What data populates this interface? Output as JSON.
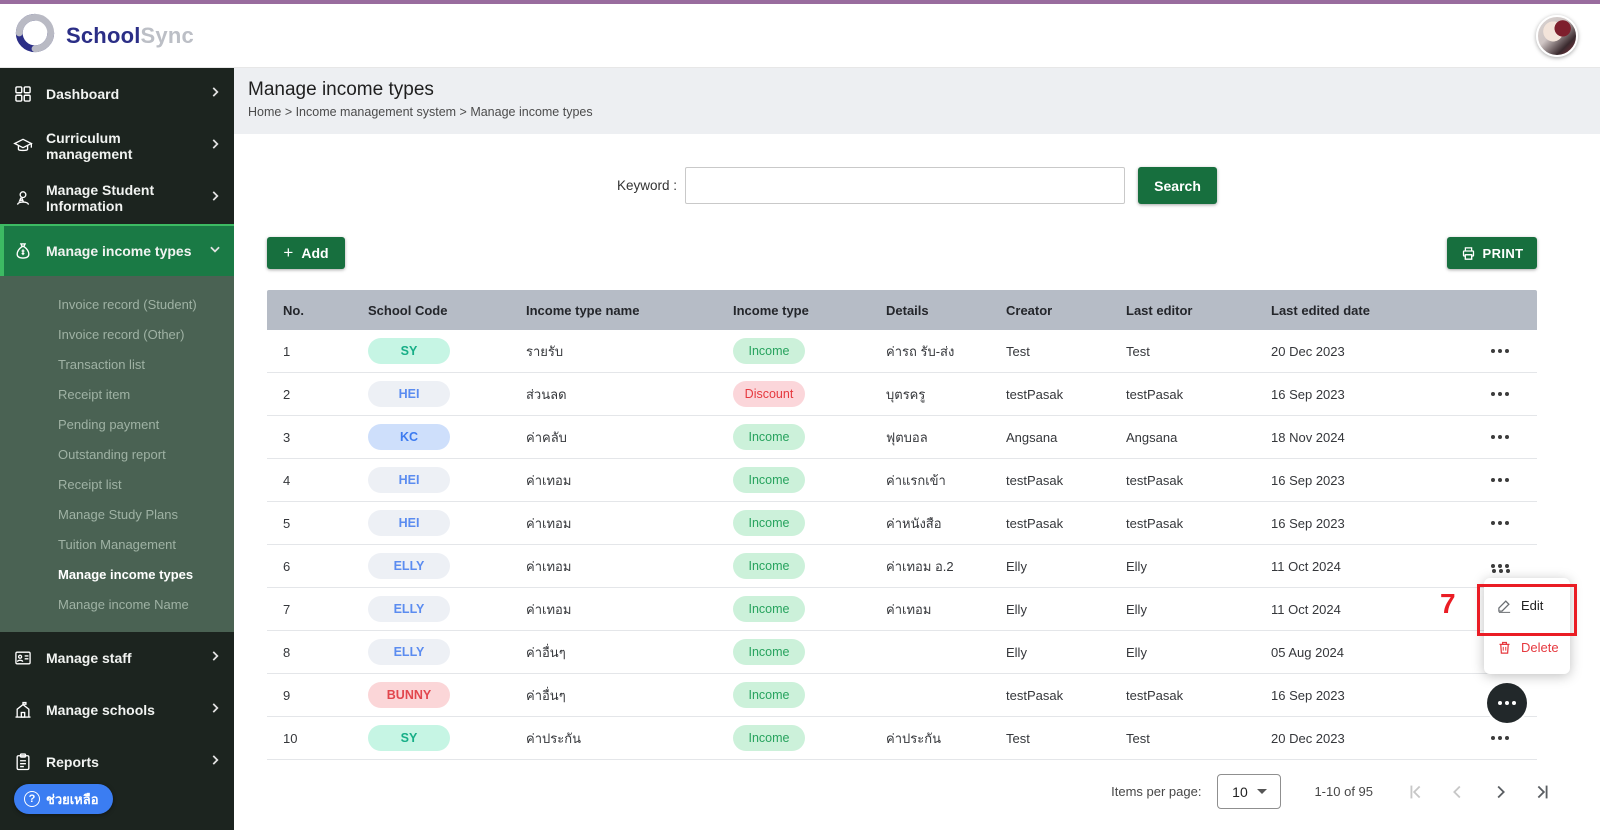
{
  "topbar": {
    "brand_primary": "School",
    "brand_secondary": "Sync"
  },
  "sidebar": {
    "items": [
      {
        "label": "Dashboard",
        "icon": "grid-icon",
        "active": false
      },
      {
        "label": "Curriculum management",
        "icon": "graduation-cap-icon",
        "active": false
      },
      {
        "label": "Manage Student Information",
        "icon": "student-icon",
        "active": false
      },
      {
        "label": "Manage income types",
        "icon": "money-bag-icon",
        "active": true
      },
      {
        "label": "Manage staff",
        "icon": "id-badge-icon",
        "active": false
      },
      {
        "label": "Manage schools",
        "icon": "school-building-icon",
        "active": false
      },
      {
        "label": "Reports",
        "icon": "clipboard-icon",
        "active": false
      }
    ],
    "submenu": [
      "Invoice record (Student)",
      "Invoice record (Other)",
      "Transaction list",
      "Receipt item",
      "Pending payment",
      "Outstanding report",
      "Receipt list",
      "Manage Study Plans",
      "Tuition Management",
      "Manage income types",
      "Manage income Name"
    ],
    "submenu_active": "Manage income types",
    "help_label": "ช่วยเหลือ"
  },
  "page_header": {
    "title": "Manage income types",
    "breadcrumb": "Home > Income management system > Manage income types"
  },
  "search": {
    "label": "Keyword :",
    "value": "",
    "button_label": "Search"
  },
  "toolbar": {
    "add_label": "Add",
    "print_label": "PRINT"
  },
  "table": {
    "columns": [
      "No.",
      "School Code",
      "Income type name",
      "Income type",
      "Details",
      "Creator",
      "Last editor",
      "Last edited date"
    ],
    "rows": [
      {
        "no": "1",
        "code": "SY",
        "code_style": "mint",
        "name": "รายรับ",
        "type": "Income",
        "details": "ค่ารถ รับ-ส่ง",
        "creator": "Test",
        "editor": "Test",
        "date": "20 Dec 2023",
        "action_visible": true
      },
      {
        "no": "2",
        "code": "HEI",
        "code_style": "grey",
        "name": "ส่วนลด",
        "type": "Discount",
        "details": "บุตรครู",
        "creator": "testPasak",
        "editor": "testPasak",
        "date": "16 Sep 2023",
        "action_visible": true
      },
      {
        "no": "3",
        "code": "KC",
        "code_style": "blue",
        "name": "ค่าคลับ",
        "type": "Income",
        "details": "ฟุตบอล",
        "creator": "Angsana",
        "editor": "Angsana",
        "date": "18 Nov 2024",
        "action_visible": true
      },
      {
        "no": "4",
        "code": "HEI",
        "code_style": "grey",
        "name": "ค่าเทอม",
        "type": "Income",
        "details": "ค่าแรกเข้า",
        "creator": "testPasak",
        "editor": "testPasak",
        "date": "16 Sep 2023",
        "action_visible": true
      },
      {
        "no": "5",
        "code": "HEI",
        "code_style": "grey",
        "name": "ค่าเทอม",
        "type": "Income",
        "details": "ค่าหนังสือ",
        "creator": "testPasak",
        "editor": "testPasak",
        "date": "16 Sep 2023",
        "action_visible": true
      },
      {
        "no": "6",
        "code": "ELLY",
        "code_style": "grey",
        "name": "ค่าเทอม",
        "type": "Income",
        "details": "ค่าเทอม อ.2",
        "creator": "Elly",
        "editor": "Elly",
        "date": "11 Oct 2024",
        "action_visible": true
      },
      {
        "no": "7",
        "code": "ELLY",
        "code_style": "grey",
        "name": "ค่าเทอม",
        "type": "Income",
        "details": "ค่าเทอม",
        "creator": "Elly",
        "editor": "Elly",
        "date": "11 Oct 2024",
        "action_visible": false
      },
      {
        "no": "8",
        "code": "ELLY",
        "code_style": "grey",
        "name": "ค่าอื่นๆ",
        "type": "Income",
        "details": "",
        "creator": "Elly",
        "editor": "Elly",
        "date": "05 Aug 2024",
        "action_visible": false
      },
      {
        "no": "9",
        "code": "BUNNY",
        "code_style": "pink",
        "name": "ค่าอื่นๆ",
        "type": "Income",
        "details": "",
        "creator": "testPasak",
        "editor": "testPasak",
        "date": "16 Sep 2023",
        "action_visible": false
      },
      {
        "no": "10",
        "code": "SY",
        "code_style": "mint",
        "name": "ค่าประกัน",
        "type": "Income",
        "details": "ค่าประกัน",
        "creator": "Test",
        "editor": "Test",
        "date": "20 Dec 2023",
        "action_visible": true
      }
    ]
  },
  "context_menu": {
    "edit_label": "Edit",
    "delete_label": "Delete",
    "annotation_number": "7"
  },
  "pagination": {
    "items_per_page_label": "Items per page:",
    "items_per_page": "10",
    "range_label": "1-10 of 95"
  },
  "colors": {
    "accent_green": "#176f3e",
    "sidebar_dark": "#1c241f",
    "active_green": "#1a7a45",
    "submenu_green": "#4a6253",
    "annotation_red": "#ea1c24",
    "help_blue": "#3b7df2",
    "top_accent_purple": "#996c9e",
    "table_header_grey": "#b6bcc6"
  }
}
